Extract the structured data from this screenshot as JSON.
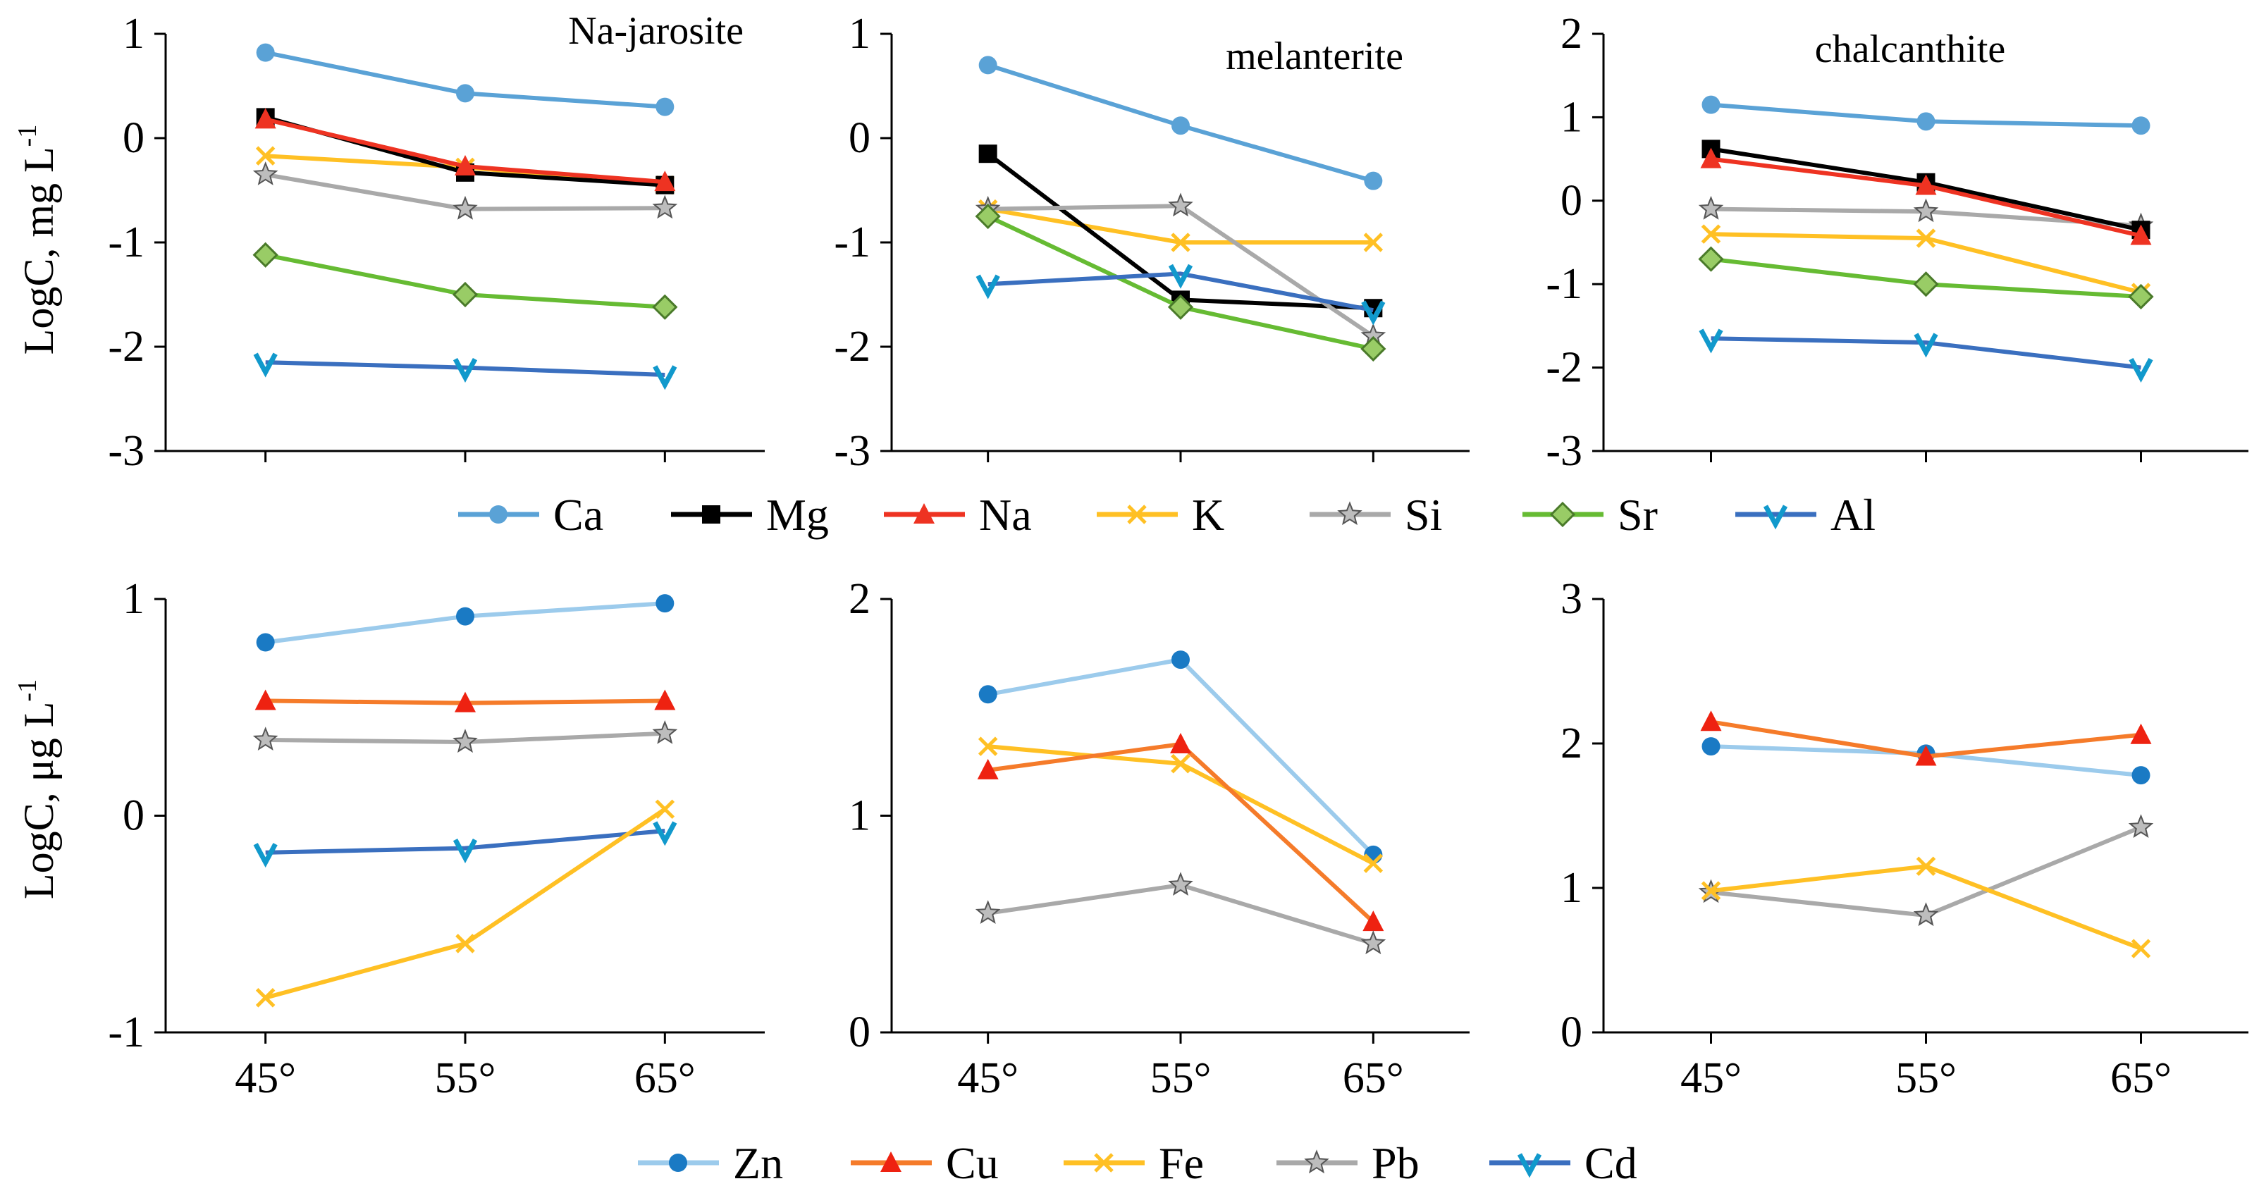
{
  "figure": {
    "series_styles": {
      "Ca": {
        "color": "#5aa2d6",
        "marker": "circle"
      },
      "Mg": {
        "color": "#000000",
        "marker": "square"
      },
      "Na": {
        "color": "#ee3322",
        "marker": "triangle"
      },
      "K": {
        "color": "#ffc024",
        "marker": "x"
      },
      "Si": {
        "color": "#a9a9a9",
        "marker": "star"
      },
      "Sr": {
        "color": "#66bb33",
        "marker": "diamond",
        "fill": "#99cc66"
      },
      "Al": {
        "color": "#3a6fbf",
        "marker": "tri-down",
        "marker_color": "#1199cc"
      },
      "Zn": {
        "color": "#9ccbec",
        "marker": "circle",
        "marker_color": "#1a7ac4"
      },
      "Cu": {
        "color": "#f57b2a",
        "marker": "triangle",
        "marker_color": "#ee2211"
      },
      "Fe": {
        "color": "#ffc024",
        "marker": "x"
      },
      "Pb": {
        "color": "#a9a9a9",
        "marker": "star"
      },
      "Cd": {
        "color": "#3a6fbf",
        "marker": "tri-down",
        "marker_color": "#1199cc"
      }
    },
    "legend_top": [
      "Ca",
      "Mg",
      "Na",
      "K",
      "Si",
      "Sr",
      "Al"
    ],
    "legend_bottom": [
      "Zn",
      "Cu",
      "Fe",
      "Pb",
      "Cd"
    ],
    "ylabel_top": "LogC,  mg L",
    "ylabel_top_sup": "-1",
    "ylabel_bottom": "LogC,  μg L",
    "ylabel_bottom_sup": "-1"
  },
  "chart_data": [
    {
      "type": "line",
      "title": "Na-jarosite",
      "categories": [
        "45°",
        "55°",
        "65°"
      ],
      "ylim": [
        -3,
        1
      ],
      "yticks": [
        "1",
        "0",
        "-1",
        "-2",
        "-3"
      ],
      "series": [
        {
          "name": "Ca",
          "values": [
            0.82,
            0.43,
            0.3
          ]
        },
        {
          "name": "K",
          "values": [
            -0.17,
            -0.28,
            -0.45
          ]
        },
        {
          "name": "Mg",
          "values": [
            0.2,
            -0.33,
            -0.45
          ]
        },
        {
          "name": "Na",
          "values": [
            0.18,
            -0.27,
            -0.42
          ]
        },
        {
          "name": "Si",
          "values": [
            -0.35,
            -0.68,
            -0.67
          ]
        },
        {
          "name": "Sr",
          "values": [
            -1.12,
            -1.5,
            -1.62
          ]
        },
        {
          "name": "Al",
          "values": [
            -2.15,
            -2.2,
            -2.27
          ]
        }
      ]
    },
    {
      "type": "line",
      "title": "melanterite",
      "categories": [
        "45°",
        "55°",
        "65°"
      ],
      "ylim": [
        -3,
        1
      ],
      "yticks": [
        "1",
        "0",
        "-1",
        "-2",
        "-3"
      ],
      "series": [
        {
          "name": "Ca",
          "values": [
            0.7,
            0.12,
            -0.41
          ]
        },
        {
          "name": "K",
          "values": [
            -0.68,
            -1.0,
            -1.0
          ]
        },
        {
          "name": "Mg",
          "values": [
            -0.15,
            -1.55,
            -1.63
          ]
        },
        {
          "name": "Si",
          "values": [
            -0.68,
            -0.65,
            -1.9
          ]
        },
        {
          "name": "Sr",
          "values": [
            -0.75,
            -1.62,
            -2.02
          ]
        },
        {
          "name": "Al",
          "values": [
            -1.4,
            -1.3,
            -1.65
          ]
        }
      ]
    },
    {
      "type": "line",
      "title": "chalcanthite",
      "categories": [
        "45°",
        "55°",
        "65°"
      ],
      "ylim": [
        -3,
        2
      ],
      "yticks": [
        "2",
        "1",
        "0",
        "-1",
        "-2",
        "-3"
      ],
      "series": [
        {
          "name": "Ca",
          "values": [
            1.15,
            0.95,
            0.9
          ]
        },
        {
          "name": "Si",
          "values": [
            -0.1,
            -0.13,
            -0.3
          ]
        },
        {
          "name": "K",
          "values": [
            -0.4,
            -0.45,
            -1.1
          ]
        },
        {
          "name": "Mg",
          "values": [
            0.62,
            0.22,
            -0.35
          ]
        },
        {
          "name": "Na",
          "values": [
            0.5,
            0.18,
            -0.42
          ]
        },
        {
          "name": "Sr",
          "values": [
            -0.7,
            -1.0,
            -1.15
          ]
        },
        {
          "name": "Al",
          "values": [
            -1.65,
            -1.7,
            -2.0
          ]
        }
      ]
    },
    {
      "type": "line",
      "title": "",
      "categories": [
        "45°",
        "55°",
        "65°"
      ],
      "ylim": [
        -1,
        1
      ],
      "yticks": [
        "1",
        "0",
        "-1"
      ],
      "series": [
        {
          "name": "Zn",
          "values": [
            0.8,
            0.92,
            0.98
          ]
        },
        {
          "name": "Cu",
          "values": [
            0.53,
            0.52,
            0.53
          ]
        },
        {
          "name": "Pb",
          "values": [
            0.35,
            0.34,
            0.38
          ]
        },
        {
          "name": "Cd",
          "values": [
            -0.17,
            -0.15,
            -0.07
          ]
        },
        {
          "name": "Fe",
          "values": [
            -0.84,
            -0.59,
            0.03
          ]
        }
      ]
    },
    {
      "type": "line",
      "title": "",
      "categories": [
        "45°",
        "55°",
        "65°"
      ],
      "ylim": [
        0,
        2
      ],
      "yticks": [
        "2",
        "1",
        "0"
      ],
      "series": [
        {
          "name": "Zn",
          "values": [
            1.56,
            1.72,
            0.82
          ]
        },
        {
          "name": "Fe",
          "values": [
            1.32,
            1.24,
            0.78
          ]
        },
        {
          "name": "Cu",
          "values": [
            1.21,
            1.33,
            0.51
          ]
        },
        {
          "name": "Pb",
          "values": [
            0.55,
            0.68,
            0.41
          ]
        }
      ]
    },
    {
      "type": "line",
      "title": "",
      "categories": [
        "45°",
        "55°",
        "65°"
      ],
      "ylim": [
        0,
        3
      ],
      "yticks": [
        "3",
        "2",
        "1",
        "0"
      ],
      "series": [
        {
          "name": "Zn",
          "values": [
            1.98,
            1.93,
            1.78
          ]
        },
        {
          "name": "Cu",
          "values": [
            2.15,
            1.91,
            2.06
          ]
        },
        {
          "name": "Pb",
          "values": [
            0.97,
            0.81,
            1.42
          ]
        },
        {
          "name": "Fe",
          "values": [
            0.98,
            1.15,
            0.58
          ]
        }
      ]
    }
  ]
}
